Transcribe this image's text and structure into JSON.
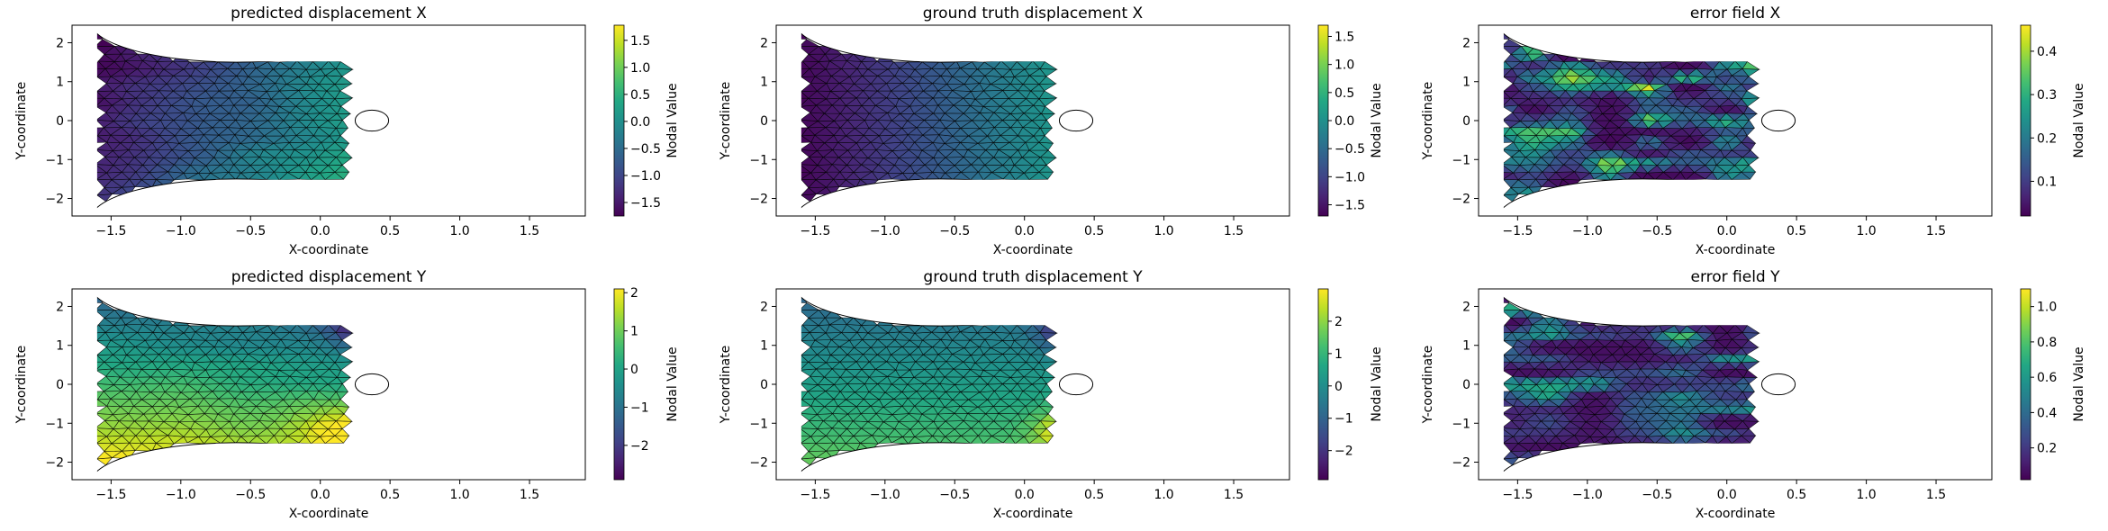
{
  "figure": {
    "colormap": "viridis",
    "mesh_color": "#000000",
    "background": "#ffffff"
  },
  "chart_data": [
    {
      "type": "heatmap",
      "field": "predicted_ux",
      "title": "predicted displacement X",
      "xlabel": "X-coordinate",
      "ylabel": "Y-coordinate",
      "xlim": [
        -1.78,
        1.9
      ],
      "ylim": [
        -2.45,
        2.45
      ],
      "xticks": [
        -1.5,
        -1.0,
        -0.5,
        0.0,
        0.5,
        1.0,
        1.5
      ],
      "xticklabels": [
        "−1.5",
        "−1.0",
        "−0.5",
        "0.0",
        "0.5",
        "1.0",
        "1.5"
      ],
      "yticks": [
        -2,
        -1,
        0,
        1,
        2
      ],
      "yticklabels": [
        "−2",
        "−1",
        "0",
        "1",
        "2"
      ],
      "colorbar": {
        "label": "Nodal Value",
        "range": [
          -1.75,
          1.78
        ],
        "ticks": [
          -1.5,
          -1.0,
          -0.5,
          0.0,
          0.5,
          1.0,
          1.5
        ],
        "ticklabels": [
          "−1.5",
          "−1.0",
          "−0.5",
          "0.0",
          "0.5",
          "1.0",
          "1.5"
        ]
      }
    },
    {
      "type": "heatmap",
      "field": "true_ux",
      "title": "ground truth displacement X",
      "xlabel": "X-coordinate",
      "ylabel": "Y-coordinate",
      "xlim": [
        -1.78,
        1.9
      ],
      "ylim": [
        -2.45,
        2.45
      ],
      "xticks": [
        -1.5,
        -1.0,
        -0.5,
        0.0,
        0.5,
        1.0,
        1.5
      ],
      "xticklabels": [
        "−1.5",
        "−1.0",
        "−0.5",
        "0.0",
        "0.5",
        "1.0",
        "1.5"
      ],
      "yticks": [
        -2,
        -1,
        0,
        1,
        2
      ],
      "yticklabels": [
        "−2",
        "−1",
        "0",
        "1",
        "2"
      ],
      "colorbar": {
        "label": "Nodal Value",
        "range": [
          -1.7,
          1.7
        ],
        "ticks": [
          -1.5,
          -1.0,
          -0.5,
          0.0,
          0.5,
          1.0,
          1.5
        ],
        "ticklabels": [
          "−1.5",
          "−1.0",
          "−0.5",
          "0.0",
          "0.5",
          "1.0",
          "1.5"
        ]
      }
    },
    {
      "type": "heatmap",
      "field": "error_ux",
      "title": "error field X",
      "xlabel": "X-coordinate",
      "ylabel": "Y-coordinate",
      "xlim": [
        -1.78,
        1.9
      ],
      "ylim": [
        -2.45,
        2.45
      ],
      "xticks": [
        -1.5,
        -1.0,
        -0.5,
        0.0,
        0.5,
        1.0,
        1.5
      ],
      "xticklabels": [
        "−1.5",
        "−1.0",
        "−0.5",
        "0.0",
        "0.5",
        "1.0",
        "1.5"
      ],
      "yticks": [
        -2,
        -1,
        0,
        1,
        2
      ],
      "yticklabels": [
        "−2",
        "−1",
        "0",
        "1",
        "2"
      ],
      "colorbar": {
        "label": "Nodal Value",
        "range": [
          0.02,
          0.46
        ],
        "ticks": [
          0.1,
          0.2,
          0.3,
          0.4
        ],
        "ticklabels": [
          "0.1",
          "0.2",
          "0.3",
          "0.4"
        ]
      }
    },
    {
      "type": "heatmap",
      "field": "predicted_uy",
      "title": "predicted displacement Y",
      "xlabel": "X-coordinate",
      "ylabel": "Y-coordinate",
      "xlim": [
        -1.78,
        1.9
      ],
      "ylim": [
        -2.45,
        2.45
      ],
      "xticks": [
        -1.5,
        -1.0,
        -0.5,
        0.0,
        0.5,
        1.0,
        1.5
      ],
      "xticklabels": [
        "−1.5",
        "−1.0",
        "−0.5",
        "0.0",
        "0.5",
        "1.0",
        "1.5"
      ],
      "yticks": [
        -2,
        -1,
        0,
        1,
        2
      ],
      "yticklabels": [
        "−2",
        "−1",
        "0",
        "1",
        "2"
      ],
      "colorbar": {
        "label": "Nodal Value",
        "range": [
          -2.9,
          2.1
        ],
        "ticks": [
          -2,
          -1,
          0,
          1,
          2
        ],
        "ticklabels": [
          "−2",
          "−1",
          "0",
          "1",
          "2"
        ]
      }
    },
    {
      "type": "heatmap",
      "field": "true_uy",
      "title": "ground truth displacement Y",
      "xlabel": "X-coordinate",
      "ylabel": "Y-coordinate",
      "xlim": [
        -1.78,
        1.9
      ],
      "ylim": [
        -2.45,
        2.45
      ],
      "xticks": [
        -1.5,
        -1.0,
        -0.5,
        0.0,
        0.5,
        1.0,
        1.5
      ],
      "xticklabels": [
        "−1.5",
        "−1.0",
        "−0.5",
        "0.0",
        "0.5",
        "1.0",
        "1.5"
      ],
      "yticks": [
        -2,
        -1,
        0,
        1,
        2
      ],
      "yticklabels": [
        "−2",
        "−1",
        "0",
        "1",
        "2"
      ],
      "colorbar": {
        "label": "Nodal Value",
        "range": [
          -2.9,
          3.0
        ],
        "ticks": [
          -2,
          -1,
          0,
          1,
          2
        ],
        "ticklabels": [
          "−2",
          "−1",
          "0",
          "1",
          "2"
        ]
      }
    },
    {
      "type": "heatmap",
      "field": "error_uy",
      "title": "error field Y",
      "xlabel": "X-coordinate",
      "ylabel": "Y-coordinate",
      "xlim": [
        -1.78,
        1.9
      ],
      "ylim": [
        -2.45,
        2.45
      ],
      "xticks": [
        -1.5,
        -1.0,
        -0.5,
        0.0,
        0.5,
        1.0,
        1.5
      ],
      "xticklabels": [
        "−1.5",
        "−1.0",
        "−0.5",
        "0.0",
        "0.5",
        "1.0",
        "1.5"
      ],
      "yticks": [
        -2,
        -1,
        0,
        1,
        2
      ],
      "yticklabels": [
        "−2",
        "−1",
        "0",
        "1",
        "2"
      ],
      "colorbar": {
        "label": "Nodal Value",
        "range": [
          0.02,
          1.1
        ],
        "ticks": [
          0.2,
          0.4,
          0.6,
          0.8,
          1.0
        ],
        "ticklabels": [
          "0.2",
          "0.4",
          "0.6",
          "0.8",
          "1.0"
        ]
      }
    }
  ]
}
